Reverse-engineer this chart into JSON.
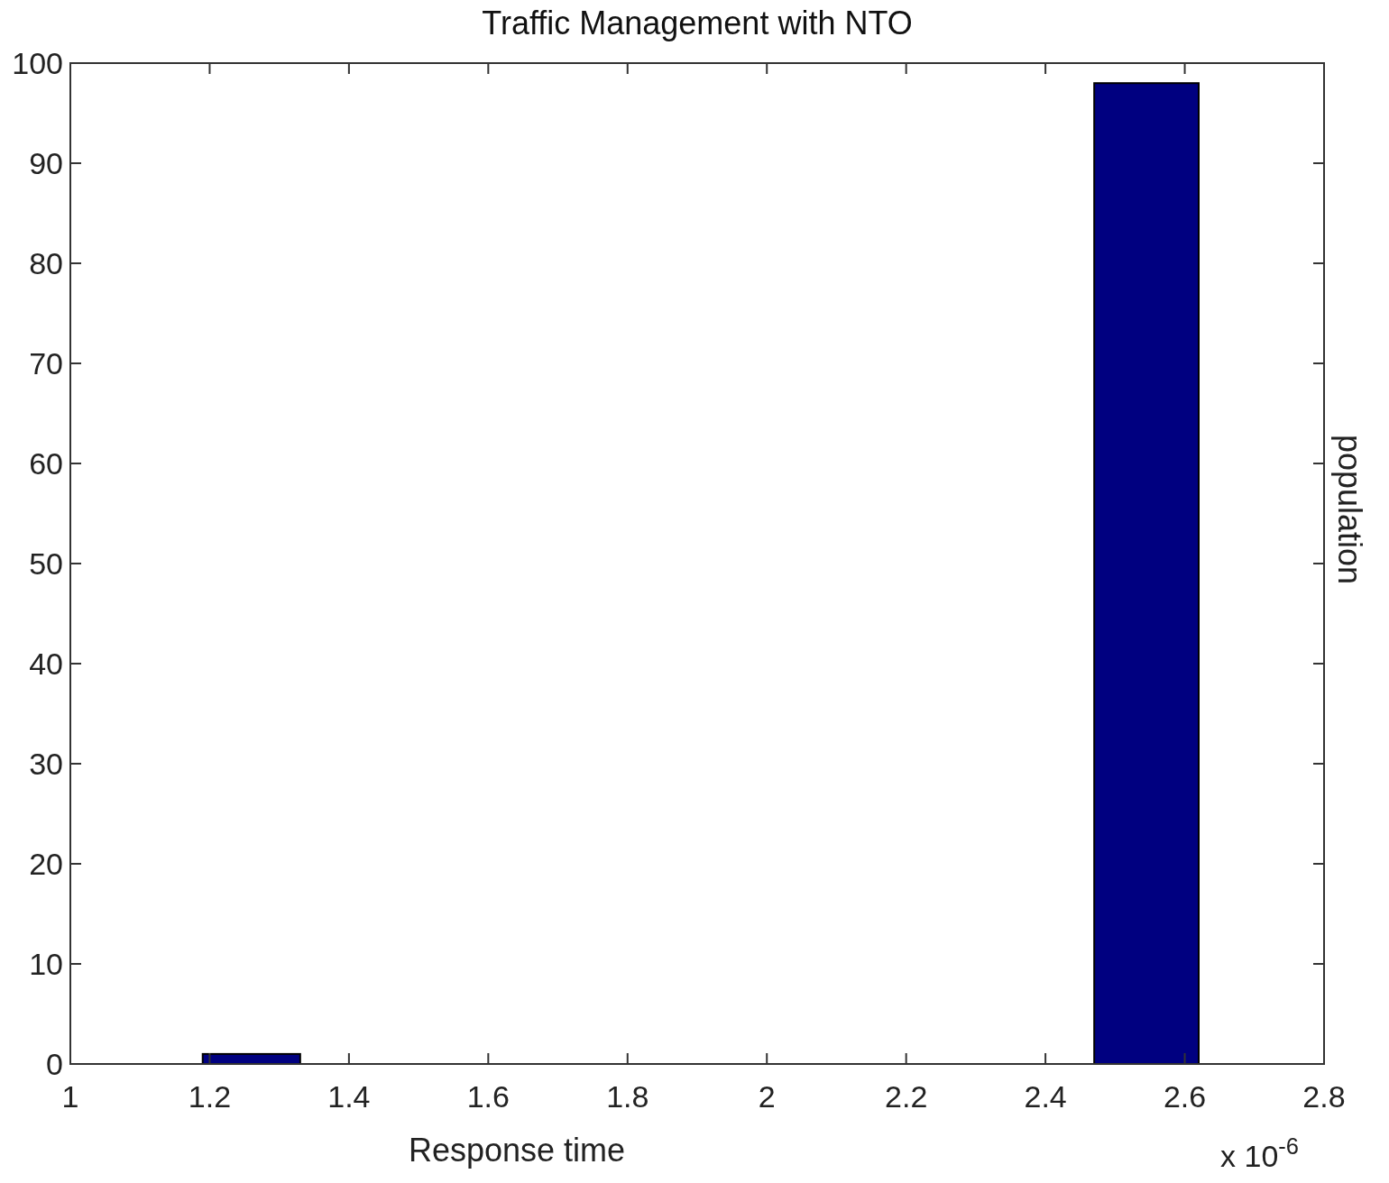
{
  "chart_data": {
    "type": "histogram",
    "title": "Traffic Management with NTO",
    "xlabel": "Response time",
    "ylabel": "population",
    "annotations": [
      "x 10$^{-6}$"
    ],
    "bins": [
      1.19,
      1.33,
      2.47,
      2.62
    ],
    "values": [
      1,
      0,
      98
    ],
    "color": "#000080",
    "xlim": [
      1,
      2.8
    ],
    "xticks": [
      1,
      1.2,
      1.4,
      1.6,
      1.8,
      2,
      2.2,
      2.4,
      2.6,
      2.8
    ],
    "ylim": [
      0,
      100
    ],
    "yticks": [
      0,
      10,
      20,
      30,
      40,
      50,
      60,
      70,
      80,
      90,
      100
    ],
    "grid": false
  }
}
